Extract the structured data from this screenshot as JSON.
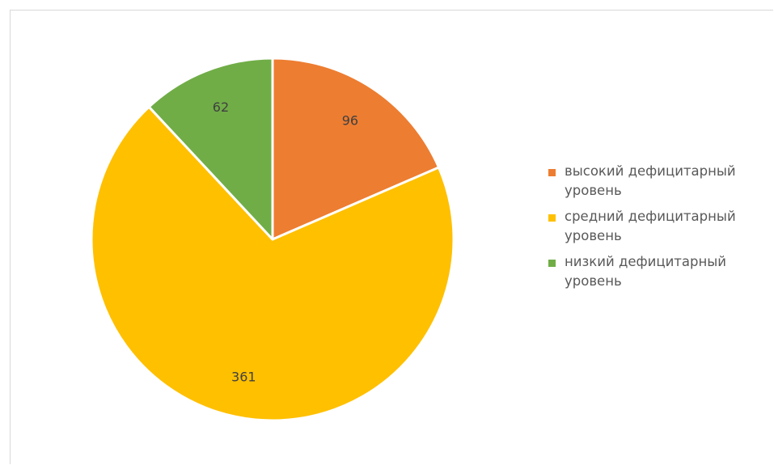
{
  "chart_data": {
    "type": "pie",
    "slices": [
      {
        "label": "высокий дефицитарный уровень",
        "value": 96,
        "data_label": "96",
        "color": "#ed7d31"
      },
      {
        "label": "средний дефицитарный уровень",
        "value": 361,
        "data_label": "361",
        "color": "#ffc000"
      },
      {
        "label": "низкий дефицитарный уровень",
        "value": 62,
        "data_label": "62",
        "color": "#70ad47"
      }
    ],
    "start_angle": "12 o'clock",
    "direction": "clockwise",
    "legend_position": "right",
    "slice_border_color": "#ffffff"
  }
}
